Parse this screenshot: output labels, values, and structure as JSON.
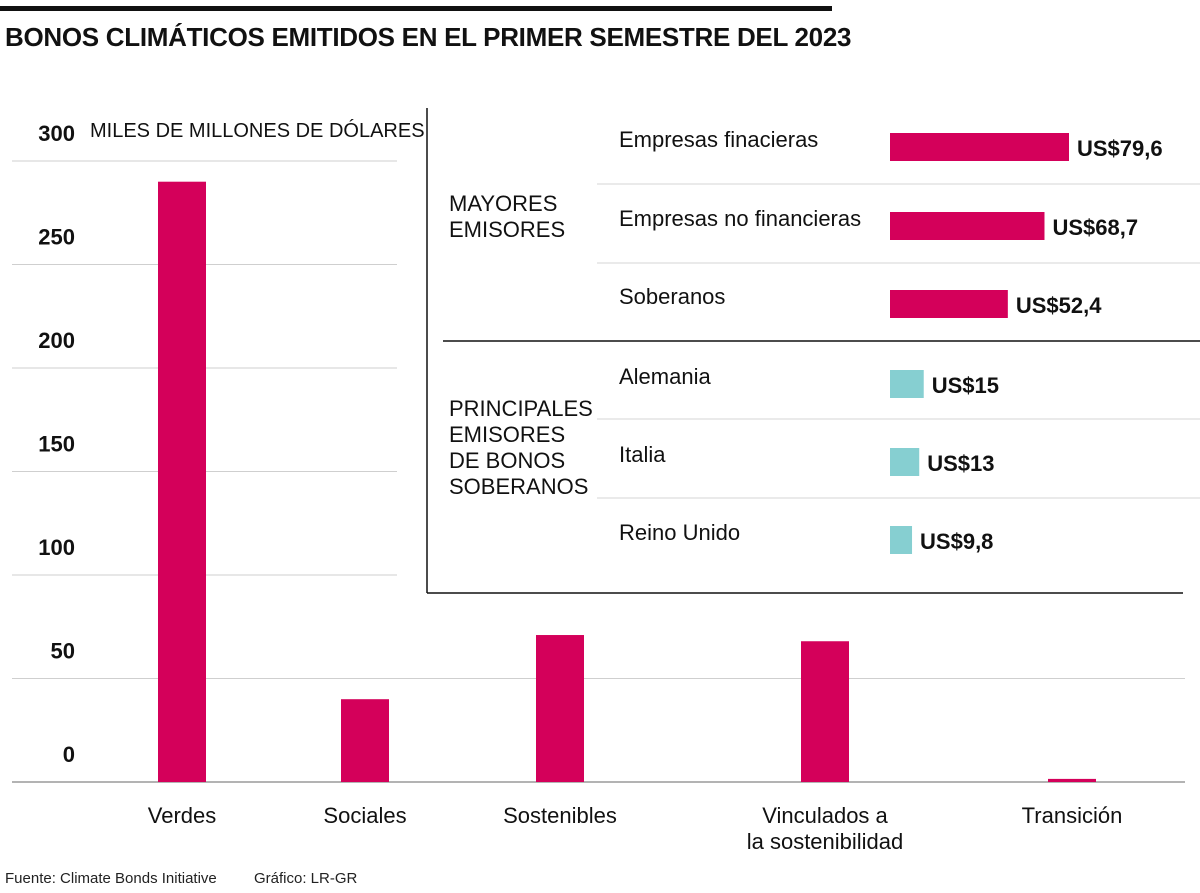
{
  "title": "BONOS CLIMÁTICOS EMITIDOS EN EL PRIMER SEMESTRE DEL 2023",
  "unit_label": "MILES DE MILLONES DE DÓLARES",
  "source": "Fuente: Climate Bonds Initiative",
  "credit": "Gráfico: LR-GR",
  "colors": {
    "primary": "#d4005a",
    "secondary": "#86cfd1"
  },
  "chart_data": [
    {
      "type": "bar",
      "title": "BONOS CLIMÁTICOS EMITIDOS EN EL PRIMER SEMESTRE DEL 2023",
      "ylabel": "MILES DE MILLONES DE DÓLARES",
      "ylim": [
        0,
        300
      ],
      "yticks": [
        0,
        50,
        100,
        150,
        200,
        250,
        300
      ],
      "grid": true,
      "categories": [
        [
          "Verdes"
        ],
        [
          "Sociales"
        ],
        [
          "Sostenibles"
        ],
        [
          "Vinculados a",
          "la sostenibilidad"
        ],
        [
          "Transición"
        ]
      ],
      "values": [
        290,
        40,
        71,
        68,
        1.5
      ]
    },
    {
      "type": "bar",
      "orientation": "horizontal",
      "groups": [
        {
          "label": [
            "MAYORES",
            "EMISORES"
          ],
          "color": "#d4005a",
          "items": [
            {
              "name": "Empresas finacieras",
              "value": 79.6,
              "label": "US$79,6"
            },
            {
              "name": "Empresas no financieras",
              "value": 68.7,
              "label": "US$68,7"
            },
            {
              "name": "Soberanos",
              "value": 52.4,
              "label": "US$52,4"
            }
          ]
        },
        {
          "label": [
            "PRINCIPALES",
            "EMISORES",
            "DE BONOS",
            "SOBERANOS"
          ],
          "color": "#86cfd1",
          "items": [
            {
              "name": "Alemania",
              "value": 15,
              "label": "US$15"
            },
            {
              "name": "Italia",
              "value": 13,
              "label": "US$13"
            },
            {
              "name": "Reino Unido",
              "value": 9.8,
              "label": "US$9,8"
            }
          ]
        }
      ]
    }
  ]
}
